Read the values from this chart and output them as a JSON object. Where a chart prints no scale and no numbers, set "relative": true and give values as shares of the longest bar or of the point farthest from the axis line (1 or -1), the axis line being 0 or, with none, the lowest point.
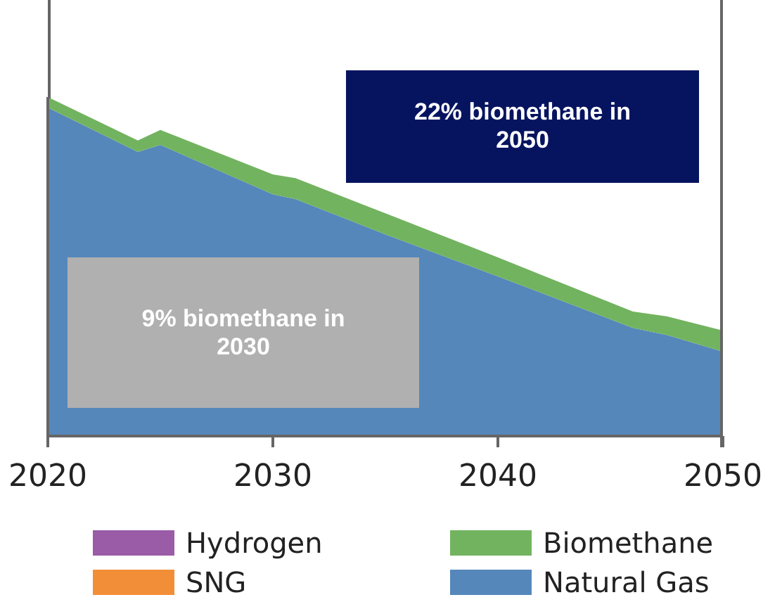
{
  "chart_data": {
    "type": "area",
    "stacked": true,
    "relative": true,
    "legend": "bottom",
    "x": [
      2020,
      2024,
      2025,
      2030,
      2031,
      2035,
      2040,
      2046,
      2047.5,
      2050
    ],
    "xlim": [
      2020,
      2050
    ],
    "xticks": [
      2020,
      2030,
      2040,
      2050
    ],
    "series": [
      {
        "name": "Natural Gas",
        "color": "#5587bb",
        "values": [
          0.969,
          0.838,
          0.859,
          0.713,
          0.699,
          0.595,
          0.471,
          0.319,
          0.298,
          0.249
        ]
      },
      {
        "name": "Biomethane",
        "color": "#72b35f",
        "values": [
          0.031,
          0.034,
          0.044,
          0.059,
          0.062,
          0.062,
          0.056,
          0.048,
          0.055,
          0.062
        ]
      },
      {
        "name": "SNG",
        "color": "#f28e37",
        "values": [
          null,
          null,
          null,
          null,
          null,
          null,
          null,
          null,
          null,
          null
        ]
      },
      {
        "name": "Hydrogen",
        "color": "#9a5ba7",
        "values": [
          null,
          null,
          null,
          null,
          null,
          null,
          null,
          null,
          null,
          null
        ]
      }
    ],
    "annotations": [
      "22% biomethane in 2050",
      "9% biomethane in 2030"
    ]
  }
}
